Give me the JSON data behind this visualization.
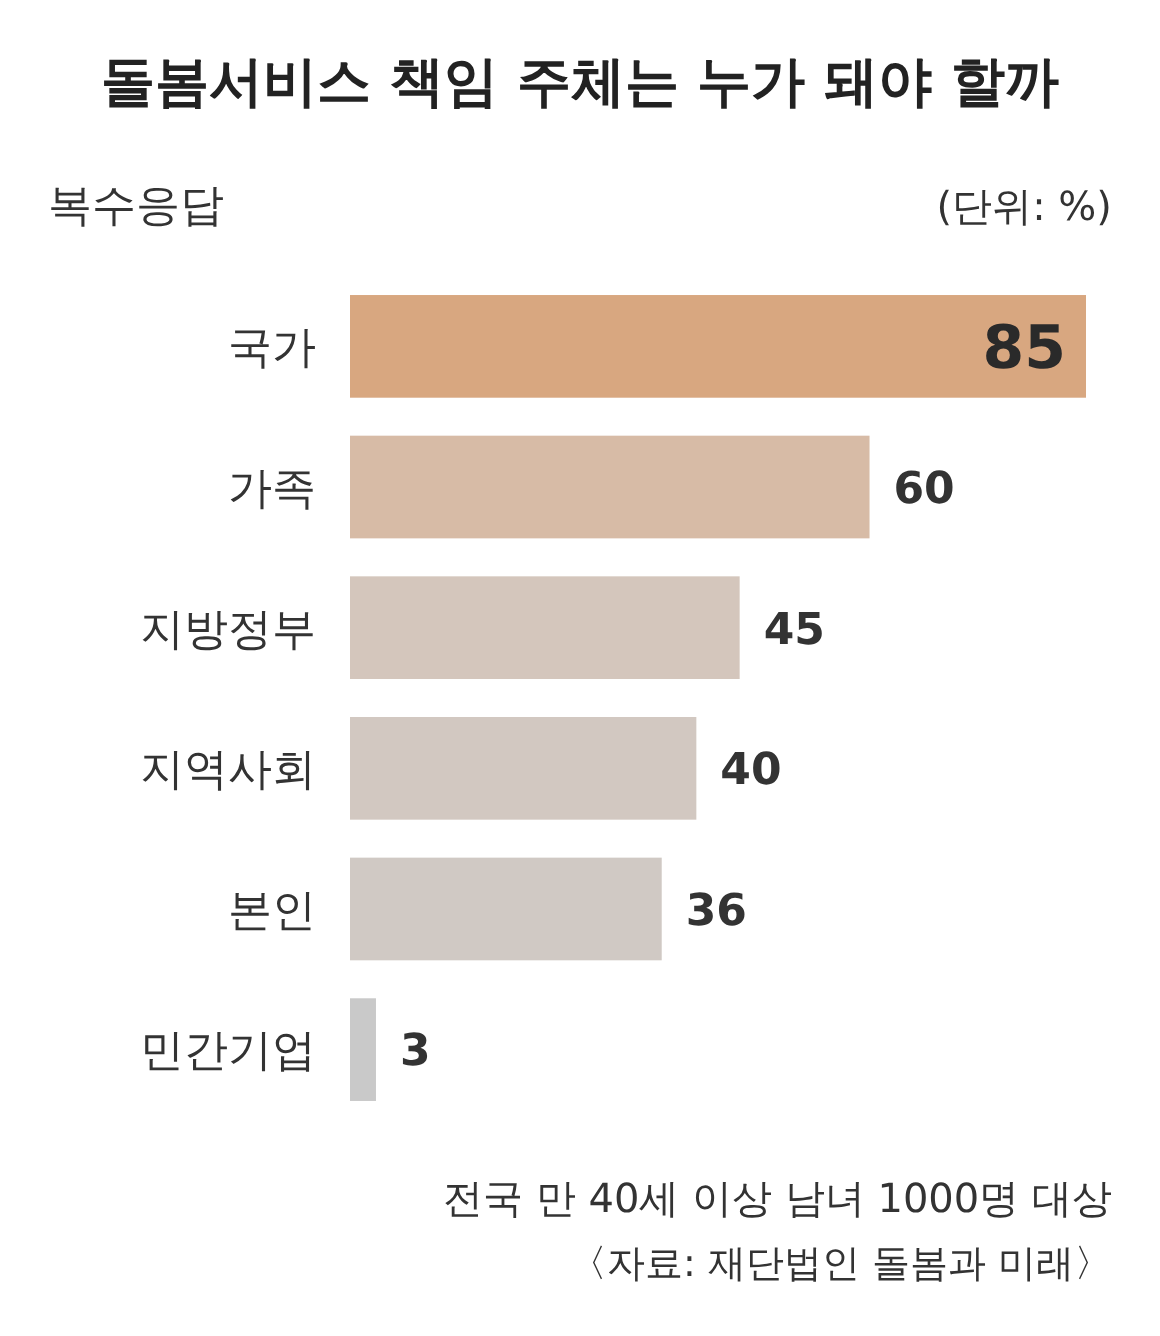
{
  "chart_data": {
    "type": "bar",
    "orientation": "horizontal",
    "title": "돌봄서비스 책임 주체는 누가 돼야 할까",
    "subtitle": "복수응답",
    "categories": [
      "국가",
      "가족",
      "지방정부",
      "지역사회",
      "본인",
      "민간기업"
    ],
    "values": [
      85,
      60,
      45,
      40,
      36,
      3
    ],
    "colors": [
      "#d8a780",
      "#d7bba6",
      "#d4c6bc",
      "#d2c8c1",
      "#d0c9c4",
      "#c9c9c9"
    ],
    "data_labels": true,
    "annotations": [
      "(단위: %)",
      "전국 만 40세 이상 남녀 1000명 대상",
      "〈자료: 재단법인 돌봄과 미래〉"
    ]
  }
}
